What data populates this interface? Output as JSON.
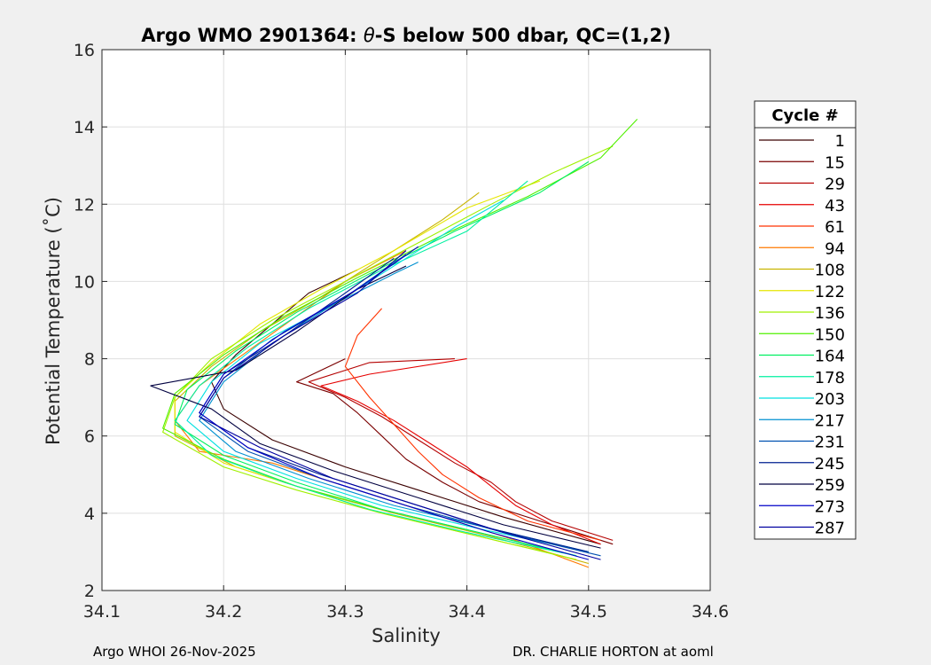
{
  "chart_data": {
    "type": "line",
    "title_prefix": "Argo WMO 2901364: ",
    "title_theta": "θ",
    "title_suffix": "-S below 500 dbar,  QC=(1,2)",
    "xlabel": "Salinity",
    "ylabel": "Potential Temperature (˚C)",
    "xlim": [
      34.1,
      34.6
    ],
    "ylim": [
      2,
      16
    ],
    "xticks": [
      "34.1",
      "34.2",
      "34.3",
      "34.4",
      "34.5",
      "34.6"
    ],
    "yticks": [
      "2",
      "4",
      "6",
      "8",
      "10",
      "12",
      "14",
      "16"
    ],
    "grid": true,
    "legend_title": "Cycle #",
    "legend_position": "outside-right",
    "series": [
      {
        "name": "1",
        "color": "#3a0000",
        "points": [
          [
            34.51,
            3.2
          ],
          [
            34.43,
            3.9
          ],
          [
            34.36,
            4.6
          ],
          [
            34.3,
            5.2
          ],
          [
            34.24,
            5.9
          ],
          [
            34.2,
            6.7
          ],
          [
            34.19,
            7.4
          ],
          [
            34.21,
            8.1
          ],
          [
            34.24,
            8.9
          ],
          [
            34.27,
            9.7
          ],
          [
            34.31,
            10.3
          ]
        ]
      },
      {
        "name": "15",
        "color": "#7a0000",
        "points": [
          [
            34.52,
            3.2
          ],
          [
            34.46,
            3.8
          ],
          [
            34.41,
            4.3
          ],
          [
            34.38,
            4.8
          ],
          [
            34.35,
            5.4
          ],
          [
            34.33,
            6.0
          ],
          [
            34.31,
            6.6
          ],
          [
            34.29,
            7.1
          ],
          [
            34.26,
            7.4
          ],
          [
            34.3,
            8.0
          ]
        ]
      },
      {
        "name": "29",
        "color": "#b40000",
        "points": [
          [
            34.52,
            3.3
          ],
          [
            34.47,
            3.8
          ],
          [
            34.44,
            4.3
          ],
          [
            34.42,
            4.8
          ],
          [
            34.39,
            5.3
          ],
          [
            34.36,
            5.9
          ],
          [
            34.33,
            6.5
          ],
          [
            34.3,
            7.0
          ],
          [
            34.27,
            7.4
          ],
          [
            34.32,
            7.9
          ],
          [
            34.39,
            8.0
          ]
        ]
      },
      {
        "name": "43",
        "color": "#e60000",
        "points": [
          [
            34.51,
            3.2
          ],
          [
            34.47,
            3.7
          ],
          [
            34.44,
            4.2
          ],
          [
            34.42,
            4.7
          ],
          [
            34.4,
            5.2
          ],
          [
            34.37,
            5.8
          ],
          [
            34.34,
            6.4
          ],
          [
            34.31,
            6.9
          ],
          [
            34.28,
            7.3
          ],
          [
            34.32,
            7.6
          ],
          [
            34.4,
            8.0
          ]
        ]
      },
      {
        "name": "61",
        "color": "#ff3300",
        "points": [
          [
            34.51,
            3.3
          ],
          [
            34.45,
            3.8
          ],
          [
            34.41,
            4.4
          ],
          [
            34.38,
            5.0
          ],
          [
            34.36,
            5.6
          ],
          [
            34.34,
            6.3
          ],
          [
            34.32,
            7.0
          ],
          [
            34.3,
            7.8
          ],
          [
            34.31,
            8.6
          ],
          [
            34.33,
            9.3
          ]
        ]
      },
      {
        "name": "94",
        "color": "#ff7a00",
        "points": [
          [
            34.5,
            2.6
          ],
          [
            34.44,
            3.3
          ],
          [
            34.38,
            3.9
          ],
          [
            34.31,
            4.6
          ],
          [
            34.24,
            5.3
          ],
          [
            34.18,
            5.6
          ],
          [
            34.16,
            6.4
          ],
          [
            34.18,
            7.3
          ],
          [
            34.22,
            8.2
          ],
          [
            34.26,
            9.1
          ],
          [
            34.3,
            10.0
          ],
          [
            34.35,
            10.8
          ]
        ]
      },
      {
        "name": "108",
        "color": "#c8b400",
        "points": [
          [
            34.5,
            2.7
          ],
          [
            34.42,
            3.4
          ],
          [
            34.34,
            4.0
          ],
          [
            34.27,
            4.6
          ],
          [
            34.21,
            5.2
          ],
          [
            34.16,
            6.0
          ],
          [
            34.16,
            6.9
          ],
          [
            34.19,
            7.8
          ],
          [
            34.23,
            8.7
          ],
          [
            34.28,
            9.6
          ],
          [
            34.33,
            10.6
          ],
          [
            34.38,
            11.6
          ],
          [
            34.41,
            12.3
          ]
        ]
      },
      {
        "name": "122",
        "color": "#e6e600",
        "points": [
          [
            34.49,
            2.8
          ],
          [
            34.41,
            3.4
          ],
          [
            34.33,
            4.0
          ],
          [
            34.26,
            4.7
          ],
          [
            34.2,
            5.3
          ],
          [
            34.16,
            6.1
          ],
          [
            34.16,
            7.0
          ],
          [
            34.19,
            7.9
          ],
          [
            34.23,
            8.9
          ],
          [
            34.28,
            9.8
          ],
          [
            34.34,
            10.8
          ],
          [
            34.4,
            11.9
          ],
          [
            34.46,
            12.6
          ]
        ]
      },
      {
        "name": "136",
        "color": "#a0f000",
        "points": [
          [
            34.49,
            2.8
          ],
          [
            34.41,
            3.4
          ],
          [
            34.33,
            4.0
          ],
          [
            34.26,
            4.6
          ],
          [
            34.2,
            5.2
          ],
          [
            34.15,
            6.1
          ],
          [
            34.16,
            7.0
          ],
          [
            34.19,
            8.0
          ],
          [
            34.24,
            9.0
          ],
          [
            34.3,
            10.0
          ],
          [
            34.36,
            11.0
          ],
          [
            34.42,
            12.0
          ],
          [
            34.47,
            12.8
          ],
          [
            34.52,
            13.5
          ]
        ]
      },
      {
        "name": "150",
        "color": "#50f000",
        "points": [
          [
            34.49,
            2.9
          ],
          [
            34.41,
            3.5
          ],
          [
            34.33,
            4.1
          ],
          [
            34.26,
            4.7
          ],
          [
            34.2,
            5.4
          ],
          [
            34.15,
            6.2
          ],
          [
            34.16,
            7.1
          ],
          [
            34.2,
            8.1
          ],
          [
            34.25,
            9.1
          ],
          [
            34.31,
            10.1
          ],
          [
            34.38,
            11.2
          ],
          [
            34.45,
            12.2
          ],
          [
            34.51,
            13.2
          ],
          [
            34.54,
            14.2
          ]
        ]
      },
      {
        "name": "164",
        "color": "#00f060",
        "points": [
          [
            34.49,
            2.9
          ],
          [
            34.41,
            3.5
          ],
          [
            34.33,
            4.1
          ],
          [
            34.26,
            4.8
          ],
          [
            34.2,
            5.5
          ],
          [
            34.16,
            6.3
          ],
          [
            34.17,
            7.2
          ],
          [
            34.21,
            8.2
          ],
          [
            34.26,
            9.2
          ],
          [
            34.32,
            10.2
          ],
          [
            34.39,
            11.3
          ],
          [
            34.46,
            12.3
          ],
          [
            34.5,
            13.1
          ]
        ]
      },
      {
        "name": "178",
        "color": "#00f0a0",
        "points": [
          [
            34.49,
            2.9
          ],
          [
            34.4,
            3.5
          ],
          [
            34.32,
            4.1
          ],
          [
            34.25,
            4.8
          ],
          [
            34.19,
            5.5
          ],
          [
            34.16,
            6.4
          ],
          [
            34.18,
            7.3
          ],
          [
            34.22,
            8.3
          ],
          [
            34.27,
            9.3
          ],
          [
            34.33,
            10.3
          ],
          [
            34.4,
            11.3
          ],
          [
            34.45,
            12.6
          ]
        ]
      },
      {
        "name": "203",
        "color": "#00e0e0",
        "points": [
          [
            34.5,
            3.0
          ],
          [
            34.41,
            3.6
          ],
          [
            34.33,
            4.2
          ],
          [
            34.26,
            4.9
          ],
          [
            34.2,
            5.6
          ],
          [
            34.17,
            6.4
          ],
          [
            34.19,
            7.4
          ],
          [
            34.23,
            8.4
          ],
          [
            34.29,
            9.4
          ],
          [
            34.33,
            10.2
          ],
          [
            34.39,
            11.4
          ],
          [
            34.43,
            12.1
          ]
        ]
      },
      {
        "name": "217",
        "color": "#0090d0",
        "points": [
          [
            34.5,
            3.0
          ],
          [
            34.42,
            3.6
          ],
          [
            34.34,
            4.2
          ],
          [
            34.27,
            4.9
          ],
          [
            34.21,
            5.6
          ],
          [
            34.18,
            6.4
          ],
          [
            34.2,
            7.4
          ],
          [
            34.24,
            8.4
          ],
          [
            34.29,
            9.4
          ],
          [
            34.34,
            10.2
          ],
          [
            34.36,
            10.5
          ]
        ]
      },
      {
        "name": "231",
        "color": "#0050b0",
        "points": [
          [
            34.51,
            2.9
          ],
          [
            34.43,
            3.5
          ],
          [
            34.35,
            4.2
          ],
          [
            34.28,
            4.9
          ],
          [
            34.22,
            5.6
          ],
          [
            34.18,
            6.5
          ],
          [
            34.2,
            7.5
          ],
          [
            34.24,
            8.5
          ],
          [
            34.3,
            9.6
          ],
          [
            34.35,
            10.7
          ]
        ]
      },
      {
        "name": "245",
        "color": "#002090",
        "points": [
          [
            34.5,
            3.0
          ],
          [
            34.42,
            3.6
          ],
          [
            34.35,
            4.3
          ],
          [
            34.28,
            5.0
          ],
          [
            34.22,
            5.7
          ],
          [
            34.18,
            6.6
          ],
          [
            34.2,
            7.6
          ],
          [
            34.25,
            8.6
          ],
          [
            34.3,
            9.7
          ],
          [
            34.34,
            10.6
          ]
        ]
      },
      {
        "name": "259",
        "color": "#000040",
        "points": [
          [
            34.51,
            3.1
          ],
          [
            34.43,
            3.7
          ],
          [
            34.36,
            4.4
          ],
          [
            34.29,
            5.1
          ],
          [
            34.23,
            5.8
          ],
          [
            34.19,
            6.7
          ],
          [
            34.14,
            7.3
          ],
          [
            34.21,
            7.7
          ],
          [
            34.26,
            8.7
          ],
          [
            34.31,
            9.8
          ],
          [
            34.35,
            10.4
          ]
        ]
      },
      {
        "name": "273",
        "color": "#0000c8",
        "points": [
          [
            34.5,
            2.8
          ],
          [
            34.42,
            3.5
          ],
          [
            34.35,
            4.2
          ],
          [
            34.28,
            4.9
          ],
          [
            34.22,
            5.7
          ],
          [
            34.18,
            6.6
          ],
          [
            34.2,
            7.6
          ],
          [
            34.25,
            8.7
          ],
          [
            34.31,
            9.8
          ],
          [
            34.36,
            10.9
          ]
        ]
      },
      {
        "name": "287",
        "color": "#0000a0",
        "points": [
          [
            34.51,
            2.8
          ],
          [
            34.43,
            3.5
          ],
          [
            34.36,
            4.2
          ],
          [
            34.29,
            4.9
          ],
          [
            34.23,
            5.7
          ],
          [
            34.18,
            6.5
          ],
          [
            34.2,
            7.5
          ],
          [
            34.25,
            8.6
          ],
          [
            34.31,
            9.7
          ],
          [
            34.35,
            10.8
          ]
        ]
      }
    ]
  },
  "footer": {
    "left": "Argo WHOI 26-Nov-2025",
    "right": "DR. CHARLIE HORTON at aoml"
  }
}
